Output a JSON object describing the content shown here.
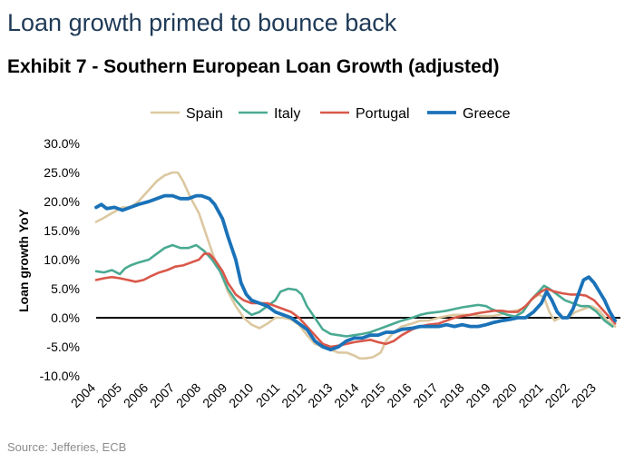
{
  "headline": "Loan growth primed to bounce back",
  "exhibit_title": "Exhibit 7 - Southern European Loan Growth (adjusted)",
  "source": "Source: Jefferies, ECB",
  "chart_data": {
    "type": "line",
    "title": "Exhibit 7 - Southern European Loan Growth (adjusted)",
    "xlabel": "",
    "ylabel": "Loan growth YoY",
    "ylim": [
      -0.1,
      0.3
    ],
    "xlim": [
      2004,
      2023.9
    ],
    "y_ticks": [
      0.3,
      0.25,
      0.2,
      0.15,
      0.1,
      0.05,
      0.0,
      -0.05,
      -0.1
    ],
    "y_tick_labels": [
      "30.0%",
      "25.0%",
      "20.0%",
      "15.0%",
      "10.0%",
      "5.0%",
      "0.0%",
      "-5.0%",
      "-10.0%"
    ],
    "x_tick_labels": [
      "2004",
      "2005",
      "2006",
      "2007",
      "2008",
      "2009",
      "2010",
      "2011",
      "2012",
      "2013",
      "2014",
      "2015",
      "2016",
      "2017",
      "2018",
      "2019",
      "2020",
      "2021",
      "2022",
      "2023"
    ],
    "zero_line": true,
    "grid": false,
    "legend_position": "top",
    "series": [
      {
        "name": "Spain",
        "color": "#dcc8a0",
        "points": [
          [
            2004.0,
            0.165
          ],
          [
            2004.3,
            0.172
          ],
          [
            2004.6,
            0.18
          ],
          [
            2005.0,
            0.19
          ],
          [
            2005.3,
            0.19
          ],
          [
            2005.6,
            0.2
          ],
          [
            2006.0,
            0.22
          ],
          [
            2006.3,
            0.235
          ],
          [
            2006.6,
            0.245
          ],
          [
            2006.9,
            0.25
          ],
          [
            2007.1,
            0.25
          ],
          [
            2007.3,
            0.235
          ],
          [
            2007.6,
            0.205
          ],
          [
            2007.9,
            0.18
          ],
          [
            2008.2,
            0.14
          ],
          [
            2008.5,
            0.1
          ],
          [
            2008.8,
            0.07
          ],
          [
            2009.0,
            0.045
          ],
          [
            2009.3,
            0.02
          ],
          [
            2009.6,
            0.0
          ],
          [
            2009.9,
            -0.012
          ],
          [
            2010.2,
            -0.018
          ],
          [
            2010.5,
            -0.01
          ],
          [
            2010.8,
            0.0
          ],
          [
            2011.1,
            0.0
          ],
          [
            2011.4,
            -0.003
          ],
          [
            2011.7,
            -0.012
          ],
          [
            2012.0,
            -0.03
          ],
          [
            2012.3,
            -0.045
          ],
          [
            2012.6,
            -0.05
          ],
          [
            2012.9,
            -0.055
          ],
          [
            2013.2,
            -0.06
          ],
          [
            2013.5,
            -0.06
          ],
          [
            2013.8,
            -0.065
          ],
          [
            2014.0,
            -0.07
          ],
          [
            2014.2,
            -0.07
          ],
          [
            2014.5,
            -0.068
          ],
          [
            2014.8,
            -0.06
          ],
          [
            2015.0,
            -0.04
          ],
          [
            2015.3,
            -0.025
          ],
          [
            2015.6,
            -0.015
          ],
          [
            2016.0,
            -0.01
          ],
          [
            2016.3,
            -0.005
          ],
          [
            2016.6,
            -0.005
          ],
          [
            2017.0,
            0.0
          ],
          [
            2017.3,
            0.003
          ],
          [
            2017.6,
            0.005
          ],
          [
            2018.0,
            0.005
          ],
          [
            2018.3,
            0.005
          ],
          [
            2018.6,
            0.003
          ],
          [
            2019.0,
            0.003
          ],
          [
            2019.3,
            0.005
          ],
          [
            2019.6,
            0.01
          ],
          [
            2019.9,
            0.012
          ],
          [
            2020.2,
            0.015
          ],
          [
            2020.5,
            0.03
          ],
          [
            2020.8,
            0.04
          ],
          [
            2021.0,
            0.035
          ],
          [
            2021.2,
            0.01
          ],
          [
            2021.4,
            -0.005
          ],
          [
            2021.6,
            0.0
          ],
          [
            2021.9,
            0.0
          ],
          [
            2022.2,
            0.01
          ],
          [
            2022.5,
            0.015
          ],
          [
            2022.8,
            0.02
          ],
          [
            2023.1,
            0.012
          ],
          [
            2023.4,
            -0.005
          ],
          [
            2023.7,
            -0.015
          ]
        ]
      },
      {
        "name": "Italy",
        "color": "#4aaa92",
        "points": [
          [
            2004.0,
            0.08
          ],
          [
            2004.3,
            0.078
          ],
          [
            2004.6,
            0.082
          ],
          [
            2004.9,
            0.075
          ],
          [
            2005.1,
            0.085
          ],
          [
            2005.3,
            0.09
          ],
          [
            2005.6,
            0.095
          ],
          [
            2006.0,
            0.1
          ],
          [
            2006.3,
            0.11
          ],
          [
            2006.6,
            0.12
          ],
          [
            2006.9,
            0.125
          ],
          [
            2007.2,
            0.12
          ],
          [
            2007.5,
            0.12
          ],
          [
            2007.8,
            0.125
          ],
          [
            2008.1,
            0.115
          ],
          [
            2008.4,
            0.1
          ],
          [
            2008.7,
            0.08
          ],
          [
            2009.0,
            0.05
          ],
          [
            2009.3,
            0.03
          ],
          [
            2009.6,
            0.015
          ],
          [
            2009.9,
            0.005
          ],
          [
            2010.2,
            0.01
          ],
          [
            2010.5,
            0.02
          ],
          [
            2010.8,
            0.03
          ],
          [
            2011.0,
            0.045
          ],
          [
            2011.3,
            0.05
          ],
          [
            2011.6,
            0.048
          ],
          [
            2011.8,
            0.04
          ],
          [
            2012.0,
            0.02
          ],
          [
            2012.3,
            0.0
          ],
          [
            2012.6,
            -0.02
          ],
          [
            2012.9,
            -0.028
          ],
          [
            2013.2,
            -0.03
          ],
          [
            2013.5,
            -0.032
          ],
          [
            2013.8,
            -0.03
          ],
          [
            2014.1,
            -0.028
          ],
          [
            2014.4,
            -0.025
          ],
          [
            2014.7,
            -0.02
          ],
          [
            2015.0,
            -0.015
          ],
          [
            2015.3,
            -0.01
          ],
          [
            2015.6,
            -0.005
          ],
          [
            2016.0,
            0.0
          ],
          [
            2016.3,
            0.005
          ],
          [
            2016.6,
            0.008
          ],
          [
            2017.0,
            0.01
          ],
          [
            2017.3,
            0.012
          ],
          [
            2017.6,
            0.015
          ],
          [
            2017.9,
            0.018
          ],
          [
            2018.2,
            0.02
          ],
          [
            2018.5,
            0.022
          ],
          [
            2018.8,
            0.02
          ],
          [
            2019.0,
            0.015
          ],
          [
            2019.3,
            0.01
          ],
          [
            2019.6,
            0.005
          ],
          [
            2019.9,
            0.002
          ],
          [
            2020.2,
            0.01
          ],
          [
            2020.5,
            0.03
          ],
          [
            2020.8,
            0.045
          ],
          [
            2021.0,
            0.055
          ],
          [
            2021.2,
            0.05
          ],
          [
            2021.5,
            0.04
          ],
          [
            2021.8,
            0.03
          ],
          [
            2022.1,
            0.025
          ],
          [
            2022.4,
            0.02
          ],
          [
            2022.7,
            0.02
          ],
          [
            2023.0,
            0.01
          ],
          [
            2023.3,
            -0.005
          ],
          [
            2023.6,
            -0.015
          ]
        ]
      },
      {
        "name": "Portugal",
        "color": "#d9584a",
        "points": [
          [
            2004.0,
            0.065
          ],
          [
            2004.3,
            0.068
          ],
          [
            2004.6,
            0.07
          ],
          [
            2004.9,
            0.068
          ],
          [
            2005.2,
            0.065
          ],
          [
            2005.5,
            0.062
          ],
          [
            2005.8,
            0.065
          ],
          [
            2006.1,
            0.072
          ],
          [
            2006.4,
            0.078
          ],
          [
            2006.7,
            0.082
          ],
          [
            2007.0,
            0.088
          ],
          [
            2007.3,
            0.09
          ],
          [
            2007.6,
            0.095
          ],
          [
            2007.9,
            0.1
          ],
          [
            2008.1,
            0.11
          ],
          [
            2008.3,
            0.11
          ],
          [
            2008.5,
            0.1
          ],
          [
            2008.8,
            0.08
          ],
          [
            2009.0,
            0.06
          ],
          [
            2009.3,
            0.04
          ],
          [
            2009.6,
            0.03
          ],
          [
            2009.9,
            0.025
          ],
          [
            2010.2,
            0.025
          ],
          [
            2010.5,
            0.025
          ],
          [
            2010.8,
            0.02
          ],
          [
            2011.1,
            0.015
          ],
          [
            2011.4,
            0.01
          ],
          [
            2011.7,
            0.0
          ],
          [
            2012.0,
            -0.015
          ],
          [
            2012.3,
            -0.03
          ],
          [
            2012.6,
            -0.045
          ],
          [
            2012.9,
            -0.05
          ],
          [
            2013.2,
            -0.048
          ],
          [
            2013.5,
            -0.045
          ],
          [
            2013.8,
            -0.042
          ],
          [
            2014.1,
            -0.04
          ],
          [
            2014.4,
            -0.038
          ],
          [
            2014.7,
            -0.042
          ],
          [
            2015.0,
            -0.045
          ],
          [
            2015.3,
            -0.04
          ],
          [
            2015.6,
            -0.03
          ],
          [
            2016.0,
            -0.02
          ],
          [
            2016.3,
            -0.015
          ],
          [
            2016.6,
            -0.012
          ],
          [
            2017.0,
            -0.01
          ],
          [
            2017.3,
            -0.005
          ],
          [
            2017.6,
            0.0
          ],
          [
            2017.9,
            0.003
          ],
          [
            2018.2,
            0.005
          ],
          [
            2018.5,
            0.008
          ],
          [
            2018.8,
            0.01
          ],
          [
            2019.1,
            0.012
          ],
          [
            2019.4,
            0.012
          ],
          [
            2019.7,
            0.01
          ],
          [
            2020.0,
            0.01
          ],
          [
            2020.3,
            0.02
          ],
          [
            2020.6,
            0.035
          ],
          [
            2020.9,
            0.045
          ],
          [
            2021.1,
            0.05
          ],
          [
            2021.4,
            0.045
          ],
          [
            2021.7,
            0.042
          ],
          [
            2022.0,
            0.04
          ],
          [
            2022.3,
            0.04
          ],
          [
            2022.6,
            0.038
          ],
          [
            2022.9,
            0.03
          ],
          [
            2023.2,
            0.015
          ],
          [
            2023.5,
            0.0
          ],
          [
            2023.7,
            -0.01
          ]
        ]
      },
      {
        "name": "Greece",
        "color": "#1a72b8",
        "points": [
          [
            2004.0,
            0.19
          ],
          [
            2004.2,
            0.195
          ],
          [
            2004.4,
            0.188
          ],
          [
            2004.7,
            0.19
          ],
          [
            2005.0,
            0.185
          ],
          [
            2005.3,
            0.19
          ],
          [
            2005.6,
            0.195
          ],
          [
            2006.0,
            0.2
          ],
          [
            2006.3,
            0.205
          ],
          [
            2006.6,
            0.21
          ],
          [
            2006.9,
            0.21
          ],
          [
            2007.2,
            0.205
          ],
          [
            2007.5,
            0.205
          ],
          [
            2007.8,
            0.21
          ],
          [
            2008.0,
            0.21
          ],
          [
            2008.3,
            0.205
          ],
          [
            2008.5,
            0.195
          ],
          [
            2008.8,
            0.17
          ],
          [
            2009.0,
            0.14
          ],
          [
            2009.3,
            0.1
          ],
          [
            2009.5,
            0.06
          ],
          [
            2009.7,
            0.04
          ],
          [
            2009.9,
            0.03
          ],
          [
            2010.2,
            0.025
          ],
          [
            2010.5,
            0.02
          ],
          [
            2010.8,
            0.01
          ],
          [
            2011.1,
            0.005
          ],
          [
            2011.4,
            0.0
          ],
          [
            2011.7,
            -0.01
          ],
          [
            2012.0,
            -0.02
          ],
          [
            2012.3,
            -0.04
          ],
          [
            2012.6,
            -0.05
          ],
          [
            2012.9,
            -0.055
          ],
          [
            2013.2,
            -0.05
          ],
          [
            2013.5,
            -0.04
          ],
          [
            2013.8,
            -0.035
          ],
          [
            2014.1,
            -0.035
          ],
          [
            2014.4,
            -0.03
          ],
          [
            2014.7,
            -0.03
          ],
          [
            2015.0,
            -0.025
          ],
          [
            2015.3,
            -0.025
          ],
          [
            2015.6,
            -0.02
          ],
          [
            2016.0,
            -0.018
          ],
          [
            2016.3,
            -0.015
          ],
          [
            2016.6,
            -0.015
          ],
          [
            2017.0,
            -0.015
          ],
          [
            2017.3,
            -0.012
          ],
          [
            2017.6,
            -0.015
          ],
          [
            2017.9,
            -0.012
          ],
          [
            2018.2,
            -0.015
          ],
          [
            2018.5,
            -0.015
          ],
          [
            2018.8,
            -0.012
          ],
          [
            2019.1,
            -0.008
          ],
          [
            2019.4,
            -0.005
          ],
          [
            2019.7,
            -0.003
          ],
          [
            2020.0,
            0.0
          ],
          [
            2020.3,
            0.0
          ],
          [
            2020.6,
            0.01
          ],
          [
            2020.9,
            0.025
          ],
          [
            2021.1,
            0.045
          ],
          [
            2021.3,
            0.03
          ],
          [
            2021.5,
            0.01
          ],
          [
            2021.7,
            0.0
          ],
          [
            2021.9,
            0.0
          ],
          [
            2022.1,
            0.015
          ],
          [
            2022.3,
            0.04
          ],
          [
            2022.5,
            0.065
          ],
          [
            2022.7,
            0.07
          ],
          [
            2022.9,
            0.06
          ],
          [
            2023.1,
            0.045
          ],
          [
            2023.3,
            0.03
          ],
          [
            2023.5,
            0.01
          ],
          [
            2023.7,
            -0.005
          ]
        ]
      }
    ]
  }
}
